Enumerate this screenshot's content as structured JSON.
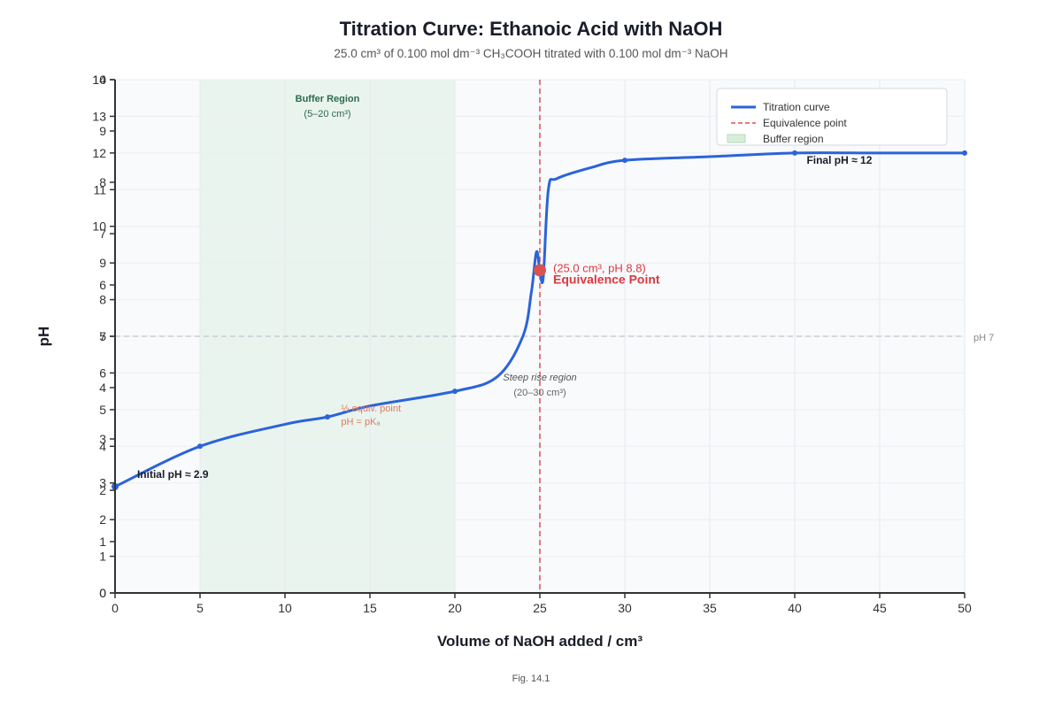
{
  "chart_data": {
    "type": "line",
    "title": "Titration Curve: Ethanoic Acid with NaOH",
    "subtitle": "25.0 cm³ of 0.100 mol dm⁻³ CH₃COOH titrated with 0.100 mol dm⁻³ NaOH",
    "xlabel": "Volume of NaOH added / cm³",
    "ylabel": "pH",
    "xlim": [
      0,
      50
    ],
    "ylim": [
      0,
      14
    ],
    "x_ticks": [
      "0",
      "5",
      "10",
      "15",
      "20",
      "25",
      "30",
      "35",
      "40",
      "45",
      "50"
    ],
    "y_ticks_left": [
      "0",
      "1",
      "2",
      "3",
      "4",
      "5",
      "6",
      "7",
      "8",
      "9",
      "10",
      "11",
      "12",
      "13",
      "14"
    ],
    "y_ticks_offset": [
      "0",
      "1",
      "2",
      "3",
      "4",
      "5",
      "6",
      "7",
      "8",
      "9",
      "10"
    ],
    "grid": true,
    "legend_position": "top-right",
    "series": [
      {
        "name": "Titration curve",
        "color": "#2b63d9",
        "x": [
          0,
          5,
          10,
          12.5,
          15,
          20,
          22.5,
          24,
          24.5,
          24.8,
          25,
          25.2,
          25.5,
          26,
          28,
          30,
          35,
          40,
          45,
          50
        ],
        "y": [
          2.9,
          4.0,
          4.6,
          4.8,
          5.1,
          5.5,
          5.9,
          7.0,
          8.2,
          9.3,
          8.8,
          8.6,
          11.0,
          11.3,
          11.6,
          11.8,
          11.9,
          12.0,
          12.0,
          12.0
        ]
      }
    ],
    "markers": [
      {
        "x": 0,
        "y": 2.9
      },
      {
        "x": 5,
        "y": 4.0
      },
      {
        "x": 12.5,
        "y": 4.8
      },
      {
        "x": 20,
        "y": 5.5
      },
      {
        "x": 30,
        "y": 11.8
      },
      {
        "x": 40,
        "y": 12.0
      },
      {
        "x": 50,
        "y": 12.0
      }
    ],
    "equivalence_point": {
      "x": 25.0,
      "y": 8.8
    },
    "buffer_region": {
      "x_start": 5,
      "x_end": 20
    },
    "reference_line": {
      "y": 7,
      "label": "pH 7"
    },
    "annotations": {
      "buffer_title": "Buffer Region",
      "buffer_range": "(5–20 cm³)",
      "equivalence_title": "Equivalence Point",
      "equivalence_detail": "(25.0 cm³, pH 8.8)",
      "steep_title": "Steep rise region",
      "steep_range": "(20–30 cm³)",
      "half_equiv_line1": "½ equiv. point",
      "half_equiv_line2": "pH = pKₐ",
      "initial_ph": "Initial pH ≈ 2.9",
      "final_ph": "Final pH ≈ 12"
    },
    "legend": [
      {
        "label": "Titration curve",
        "style": "line",
        "color": "#2b63d9"
      },
      {
        "label": "Equivalence point",
        "style": "dashed",
        "color": "#d9534f"
      },
      {
        "label": "Buffer region",
        "style": "box",
        "color": "#d8eedb"
      }
    ],
    "caption": "Fig. 14.1"
  }
}
